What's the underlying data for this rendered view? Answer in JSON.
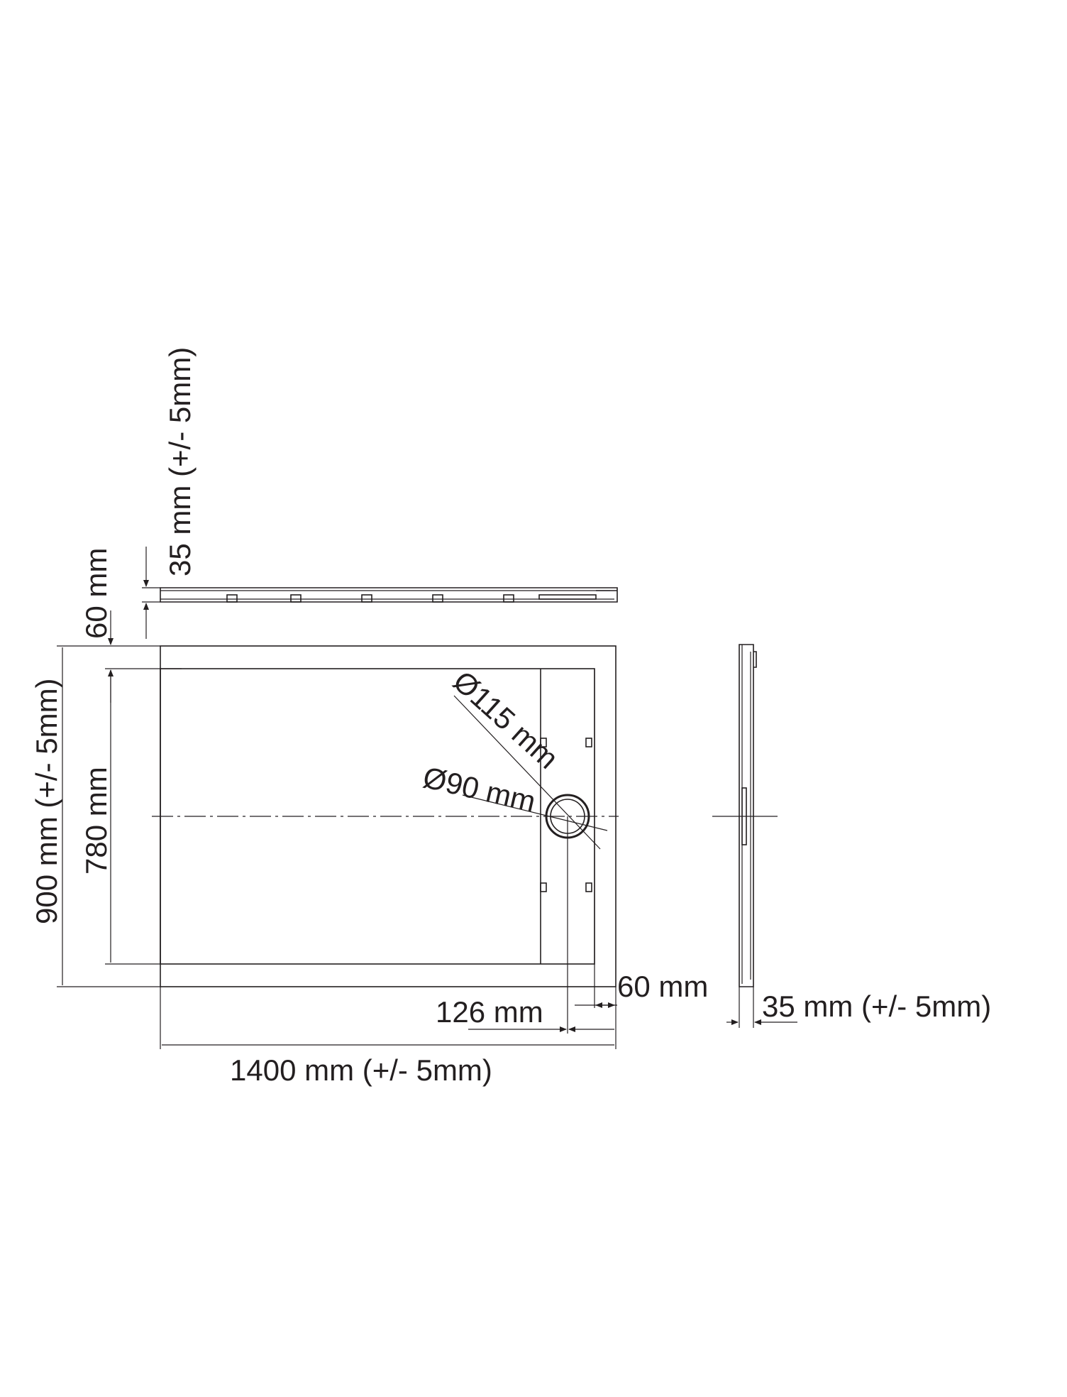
{
  "labels": {
    "height_side": "35 mm (+/- 5mm)",
    "flange_top": "60 mm",
    "width_total": "900 mm (+/- 5mm)",
    "width_inner": "780 mm",
    "drain_outer": "Ø115 mm",
    "drain_inner": "Ø90 mm",
    "flange_right": "60 mm",
    "drain_offset": "126 mm",
    "length_total": "1400 mm (+/- 5mm)",
    "height_end": "35 mm (+/- 5mm)"
  },
  "colors": {
    "line": "#231f20",
    "background": "#ffffff"
  }
}
